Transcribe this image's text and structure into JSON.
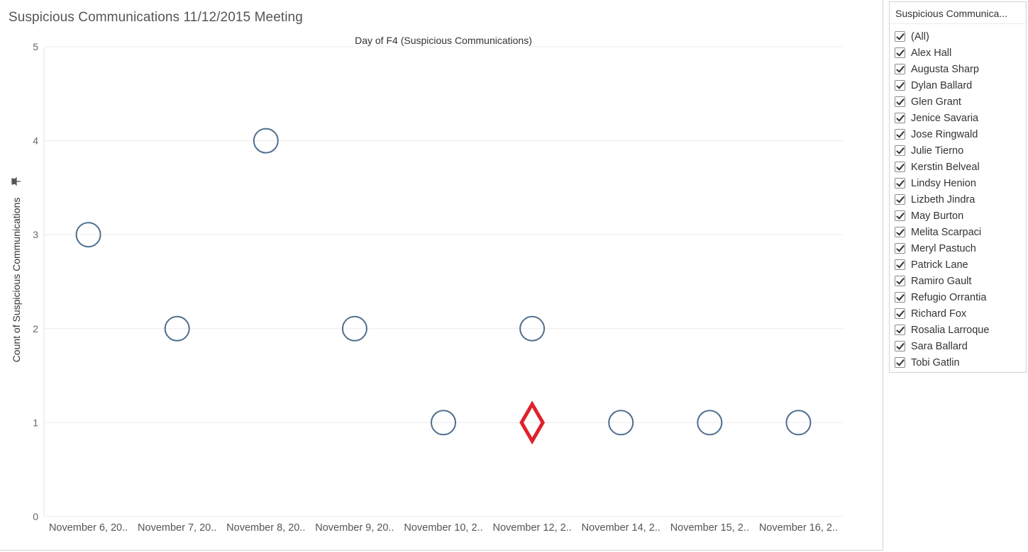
{
  "title": "Suspicious Communications 11/12/2015 Meeting",
  "chart_data": {
    "type": "scatter",
    "title": "Day of F4 (Suspicious Communications)",
    "xlabel": "",
    "ylabel": "Count of Suspicious Communications",
    "ylim": [
      0,
      5
    ],
    "yticks": [
      0,
      1,
      2,
      3,
      4,
      5
    ],
    "categories": [
      "November 6, 20..",
      "November 7, 20..",
      "November 8, 20..",
      "November 9, 20..",
      "November 10, 2..",
      "November 12, 2..",
      "November 14, 2..",
      "November 15, 2..",
      "November 16, 2.."
    ],
    "series": [
      {
        "marker": "circle",
        "color": "#4e6e8e",
        "values": [
          3,
          2,
          4,
          2,
          1,
          2,
          1,
          1,
          1
        ]
      },
      {
        "marker": "diamond",
        "color": "#e0202a",
        "values": [
          null,
          null,
          null,
          null,
          null,
          1,
          null,
          null,
          null
        ]
      }
    ],
    "grid": true
  },
  "filter": {
    "title": "Suspicious Communica...",
    "items": [
      {
        "label": "(All)",
        "checked": true
      },
      {
        "label": "Alex Hall",
        "checked": true
      },
      {
        "label": "Augusta Sharp",
        "checked": true
      },
      {
        "label": "Dylan Ballard",
        "checked": true
      },
      {
        "label": "Glen Grant",
        "checked": true
      },
      {
        "label": "Jenice Savaria",
        "checked": true
      },
      {
        "label": "Jose Ringwald",
        "checked": true
      },
      {
        "label": "Julie Tierno",
        "checked": true
      },
      {
        "label": "Kerstin Belveal",
        "checked": true
      },
      {
        "label": "Lindsy Henion",
        "checked": true
      },
      {
        "label": "Lizbeth Jindra",
        "checked": true
      },
      {
        "label": "May Burton",
        "checked": true
      },
      {
        "label": "Melita Scarpaci",
        "checked": true
      },
      {
        "label": "Meryl Pastuch",
        "checked": true
      },
      {
        "label": "Patrick Lane",
        "checked": true
      },
      {
        "label": "Ramiro Gault",
        "checked": true
      },
      {
        "label": "Refugio Orrantia",
        "checked": true
      },
      {
        "label": "Richard Fox",
        "checked": true
      },
      {
        "label": "Rosalia Larroque",
        "checked": true
      },
      {
        "label": "Sara Ballard",
        "checked": true
      },
      {
        "label": "Tobi Gatlin",
        "checked": true
      }
    ]
  },
  "icons": {
    "axis_pin": "pin-icon"
  }
}
